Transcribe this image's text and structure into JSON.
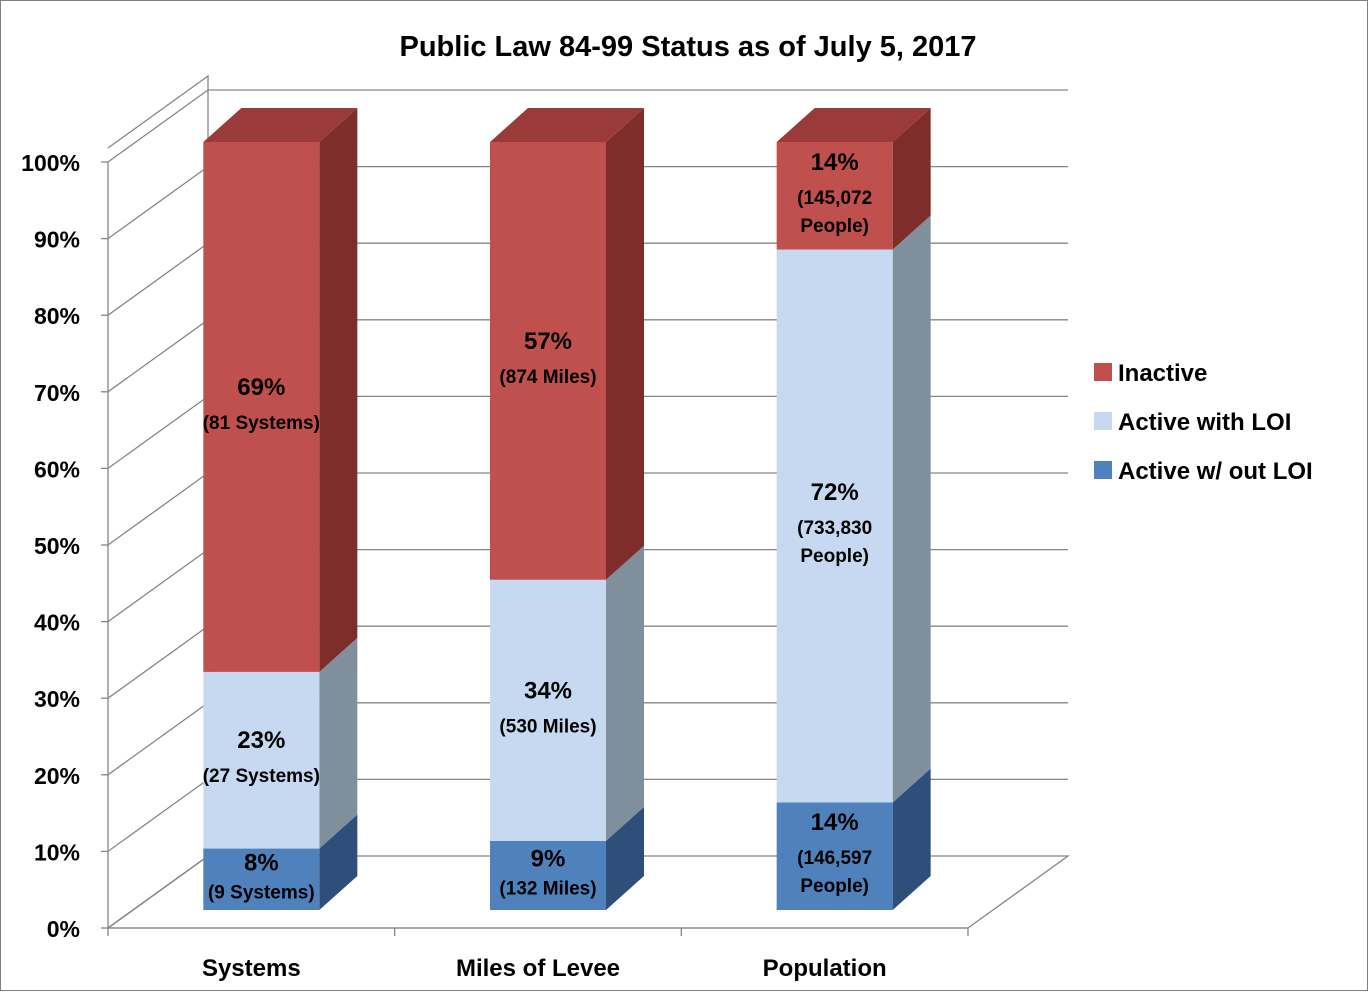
{
  "chart_data": {
    "type": "bar",
    "stacked": true,
    "percent": true,
    "title": "Public Law 84-99 Status as of July 5, 2017",
    "categories": [
      "Systems",
      "Miles of Levee",
      "Population"
    ],
    "series": [
      {
        "name": "Active w/ out LOI",
        "values": [
          8,
          9,
          14
        ],
        "labels": [
          [
            "8%",
            "(9 Systems)"
          ],
          [
            "9%",
            "(132 Miles)"
          ],
          [
            "14%",
            "(146,597",
            "People)"
          ]
        ],
        "color": "#4f81bd",
        "side_color": "#2e4f7a",
        "top_color": "#3d6699"
      },
      {
        "name": "Active with LOI",
        "values": [
          23,
          34,
          72
        ],
        "labels": [
          [
            "23%",
            "(27 Systems)"
          ],
          [
            "34%",
            "(530 Miles)"
          ],
          [
            "72%",
            "(733,830",
            "People)"
          ]
        ],
        "color": "#c6d9f1",
        "side_color": "#808f9c",
        "top_color": "#a3b3c5"
      },
      {
        "name": "Inactive",
        "values": [
          69,
          57,
          14
        ],
        "labels": [
          [
            "69%",
            "(81 Systems)"
          ],
          [
            "57%",
            "(874 Miles)"
          ],
          [
            "14%",
            "(145,072",
            "People)"
          ]
        ],
        "color": "#c0504d",
        "side_color": "#7f2d2b",
        "top_color": "#9b3b39"
      }
    ],
    "yticks": [
      "0%",
      "10%",
      "20%",
      "30%",
      "40%",
      "50%",
      "60%",
      "70%",
      "80%",
      "90%",
      "100%"
    ],
    "ylim": [
      0,
      100
    ],
    "grid": true,
    "legend_position": "right",
    "legend_order": [
      "Inactive",
      "Active with LOI",
      "Active w/ out LOI"
    ]
  }
}
